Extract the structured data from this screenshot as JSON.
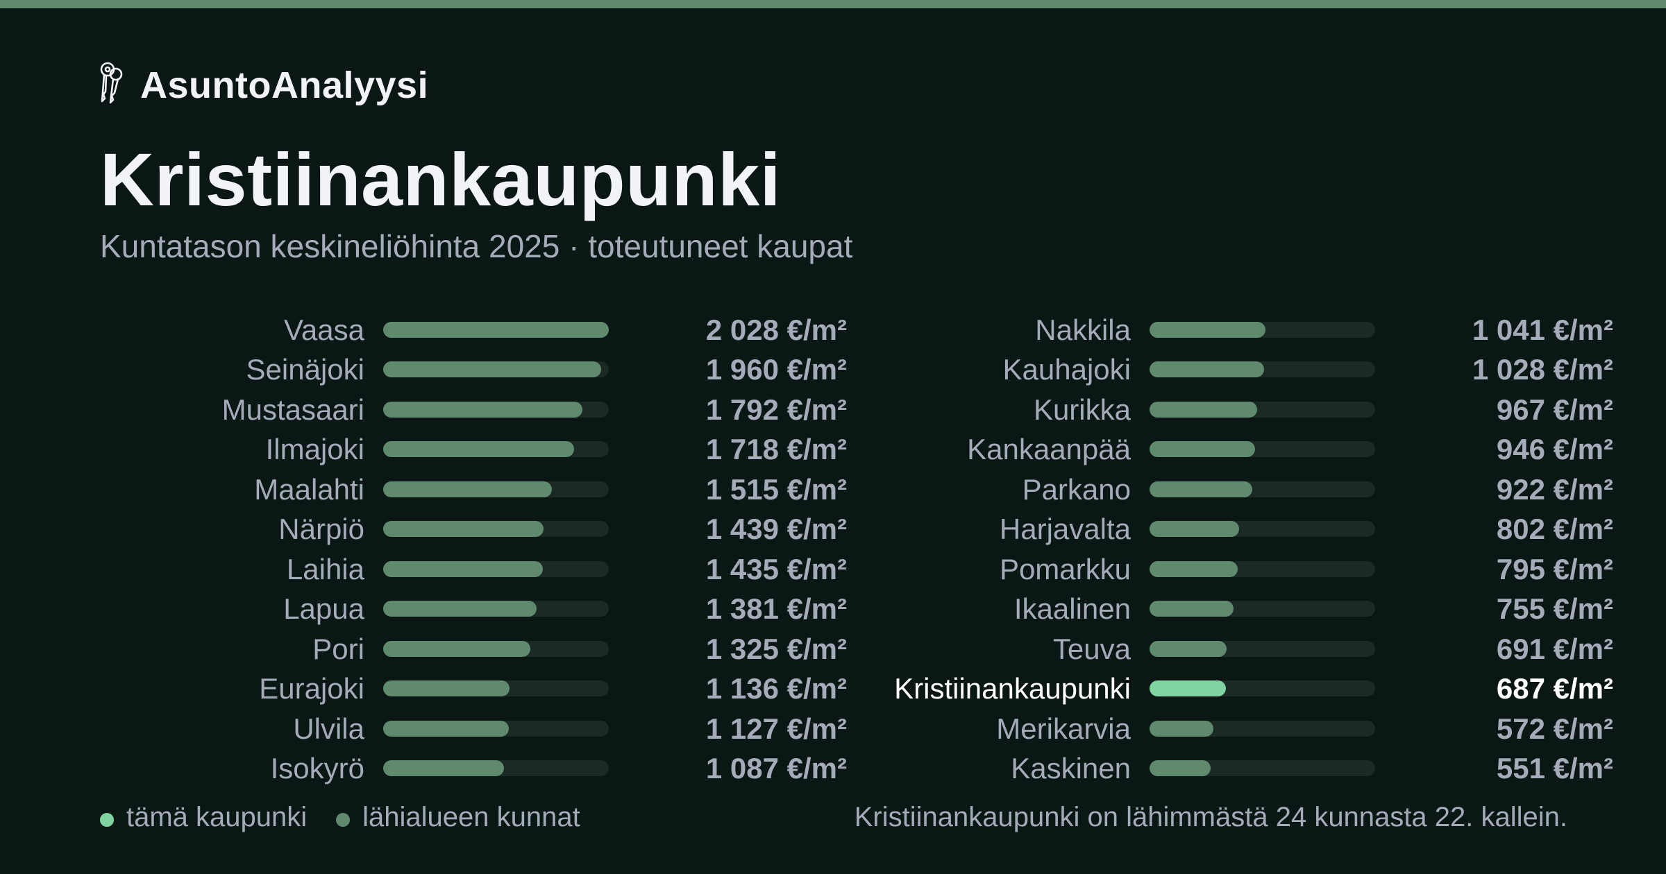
{
  "colors": {
    "background": "#0b1714",
    "top_bar": "#5f8a6d",
    "bar_default": "#5f8a6d",
    "bar_highlight": "#7fd4a0",
    "bar_track": "#1c2a26",
    "text_muted": "#a4acb9",
    "text_bright": "#ffffff"
  },
  "brand": {
    "icon": "keys-icon",
    "name": "AsuntoAnalyysi"
  },
  "header": {
    "title": "Kristiinankaupunki",
    "subtitle": "Kuntatason keskineliöhinta 2025 · toteutuneet kaupat"
  },
  "chart_data": {
    "type": "bar",
    "orientation": "horizontal",
    "unit": "€/m²",
    "highlight": "Kristiinankaupunki",
    "categories": [
      "Vaasa",
      "Seinäjoki",
      "Mustasaari",
      "Ilmajoki",
      "Maalahti",
      "Närpiö",
      "Laihia",
      "Lapua",
      "Pori",
      "Eurajoki",
      "Ulvila",
      "Isokyrö",
      "Nakkila",
      "Kauhajoki",
      "Kurikka",
      "Kankaanpää",
      "Parkano",
      "Harjavalta",
      "Pomarkku",
      "Ikaalinen",
      "Teuva",
      "Kristiinankaupunki",
      "Merikarvia",
      "Kaskinen"
    ],
    "values": [
      2028,
      1960,
      1792,
      1718,
      1515,
      1439,
      1435,
      1381,
      1325,
      1136,
      1127,
      1087,
      1041,
      1028,
      967,
      946,
      922,
      802,
      795,
      755,
      691,
      687,
      572,
      551
    ],
    "value_labels": [
      "2 028 €/m²",
      "1 960 €/m²",
      "1 792 €/m²",
      "1 718 €/m²",
      "1 515 €/m²",
      "1 439 €/m²",
      "1 435 €/m²",
      "1 381 €/m²",
      "1 325 €/m²",
      "1 136 €/m²",
      "1 127 €/m²",
      "1 087 €/m²",
      "1 041 €/m²",
      "1 028 €/m²",
      "967 €/m²",
      "946 €/m²",
      "922 €/m²",
      "802 €/m²",
      "795 €/m²",
      "755 €/m²",
      "691 €/m²",
      "687 €/m²",
      "572 €/m²",
      "551 €/m²"
    ],
    "xlim": [
      0,
      2028
    ],
    "grid": false,
    "legend_position": "bottom-left"
  },
  "legend": [
    {
      "label": "tämä kaupunki",
      "color": "#7fd4a0"
    },
    {
      "label": "lähialueen kunnat",
      "color": "#5f8a6d"
    }
  ],
  "footnote": "Kristiinankaupunki on lähimmästä 24 kunnasta 22. kallein."
}
